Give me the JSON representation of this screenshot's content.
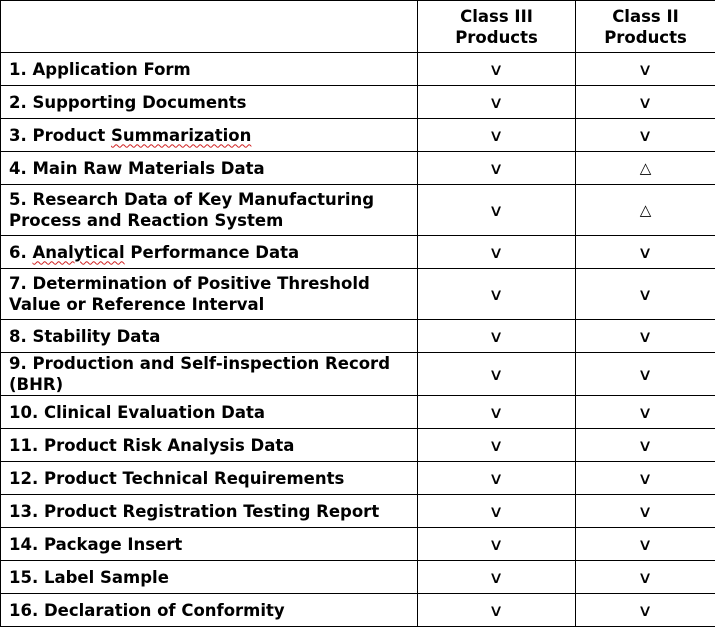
{
  "header": {
    "item_col": "",
    "class3_line1": "Class III",
    "class3_line2": "Products",
    "class2_line1": "Class II",
    "class2_line2": "Products"
  },
  "marks": {
    "check": "∨",
    "triangle": "△"
  },
  "rows": [
    {
      "label": "1. Application Form",
      "class3": "∨",
      "class2": "∨"
    },
    {
      "label": "2. Supporting Documents",
      "class3": "∨",
      "class2": "∨"
    },
    {
      "label_pre": "3. Product ",
      "label_wavy": "Summarization",
      "label_post": "",
      "class3": "∨",
      "class2": "∨"
    },
    {
      "label": "4. Main Raw Materials Data",
      "class3": "∨",
      "class2": "△"
    },
    {
      "label": "5. Research Data of Key Manufacturing Process and Reaction System",
      "class3": "∨",
      "class2": "△"
    },
    {
      "label_pre": "6. ",
      "label_wavy": "Analytical",
      "label_post": " Performance Data",
      "class3": "∨",
      "class2": "∨"
    },
    {
      "label": "7. Determination of Positive Threshold Value or Reference Interval",
      "class3": "∨",
      "class2": "∨"
    },
    {
      "label": "8. Stability Data",
      "class3": "∨",
      "class2": "∨"
    },
    {
      "label": "9. Production and Self-inspection Record (BHR)",
      "class3": "∨",
      "class2": "∨"
    },
    {
      "label": "10. Clinical Evaluation Data",
      "class3": "∨",
      "class2": "∨"
    },
    {
      "label": "11. Product Risk Analysis Data",
      "class3": "∨",
      "class2": "∨"
    },
    {
      "label": "12. Product Technical Requirements",
      "class3": "∨",
      "class2": "∨"
    },
    {
      "label": "13. Product Registration Testing Report",
      "class3": "∨",
      "class2": "∨"
    },
    {
      "label": "14. Package Insert",
      "class3": "∨",
      "class2": "∨"
    },
    {
      "label": "15. Label Sample",
      "class3": "∨",
      "class2": "∨"
    },
    {
      "label": "16. Declaration of Conformity",
      "class3": "∨",
      "class2": "∨"
    }
  ]
}
